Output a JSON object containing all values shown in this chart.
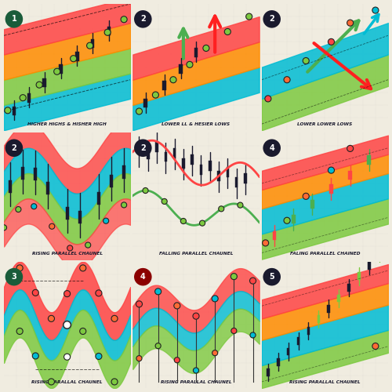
{
  "bg": "#f0ece0",
  "panel_bg": "#faf8f2",
  "divider_color": "#cccccc",
  "title_color": "#1a1a2e",
  "title_fontsize": 5.5,
  "panels": [
    {
      "num": "1",
      "num_bg": "#1a5c3a",
      "label": "HIGHER HIGHS & HISHER HIGH",
      "bands": [
        [
          "#00bcd4",
          0,
          2
        ],
        [
          "#7dc940",
          2,
          4
        ],
        [
          "#ff8c00",
          4,
          6
        ],
        [
          "#ff4444",
          6,
          8
        ]
      ],
      "slope": 0.25,
      "type": "rising_candles"
    },
    {
      "num": "2",
      "num_bg": "#1a1a2e",
      "label": "LOWER LL & HESIER LOWS",
      "bands": [
        [
          "#00bcd4",
          0,
          2
        ],
        [
          "#ff8c00",
          2,
          4
        ],
        [
          "#ff4444",
          4,
          6
        ]
      ],
      "slope": 0.3,
      "type": "arrows_up"
    },
    {
      "num": "2",
      "num_bg": "#1a1a2e",
      "label": "LOWER LOWER LOWS",
      "bands": [
        [
          "#7dc940",
          0,
          2.5
        ],
        [
          "#00bcd4",
          2.5,
          5
        ]
      ],
      "slope": 0.35,
      "type": "cross_arrows"
    },
    {
      "num": "2",
      "num_bg": "#1a1a2e",
      "label": "RISING PARALLEL CHAUNEL",
      "type": "wave_channel"
    },
    {
      "num": "2",
      "num_bg": "#1a1a2e",
      "label": "FALLING PARALLEL CHAUNEL",
      "type": "falling_candles_plain"
    },
    {
      "num": "4",
      "num_bg": "#1a1a2e",
      "label": "FALING PARALLEL CHAINED",
      "bands": [
        [
          "#7dc940",
          0,
          2
        ],
        [
          "#00bcd4",
          2,
          4
        ],
        [
          "#ff8c00",
          4,
          5.5
        ],
        [
          "#ff4444",
          5.5,
          7
        ]
      ],
      "slope": 0.28,
      "type": "rising_candles_colored"
    },
    {
      "num": "3",
      "num_bg": "#1a5c3a",
      "label": "RISING PARALLAL CHAUNEL",
      "type": "zigzag_wave"
    },
    {
      "num": "4",
      "num_bg": "#8b0000",
      "label": "RISING PARALLAL CHAUNEL",
      "type": "wave_rising_dots"
    },
    {
      "num": "5",
      "num_bg": "#1a1a2e",
      "label": "RISING PARALLAL CHAUNEL",
      "bands": [
        [
          "#7dc940",
          0,
          1.8
        ],
        [
          "#00bcd4",
          1.8,
          3.8
        ],
        [
          "#ff8c00",
          3.8,
          5.5
        ],
        [
          "#ff4444",
          5.5,
          7
        ]
      ],
      "slope": 0.28,
      "type": "rising_candles_only"
    }
  ]
}
